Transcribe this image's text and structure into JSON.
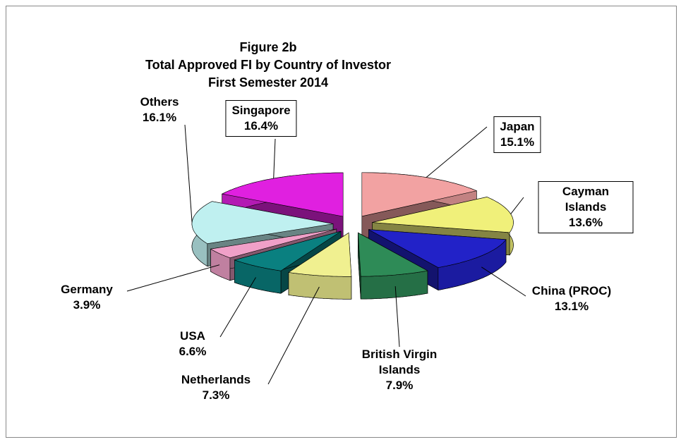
{
  "chart_data": {
    "type": "pie",
    "title": [
      "Figure 2b",
      "Total Approved FI by Country of Investor",
      "First Semester 2014"
    ],
    "categories": [
      "Japan",
      "Cayman Islands",
      "China (PROC)",
      "British Virgin Islands",
      "Netherlands",
      "USA",
      "Germany",
      "Others",
      "Singapore"
    ],
    "values": [
      15.1,
      13.6,
      13.1,
      7.9,
      7.3,
      6.6,
      3.9,
      16.1,
      16.4
    ],
    "value_labels": [
      "15.1%",
      "13.6%",
      "13.1%",
      "7.9%",
      "7.3%",
      "6.6%",
      "3.9%",
      "16.1%",
      "16.4%"
    ],
    "colors": [
      "#f2a2a2",
      "#f0f07a",
      "#2222c8",
      "#2e8b57",
      "#f0f090",
      "#0a8080",
      "#f0a0c8",
      "#bff0f0",
      "#e020e0"
    ]
  }
}
